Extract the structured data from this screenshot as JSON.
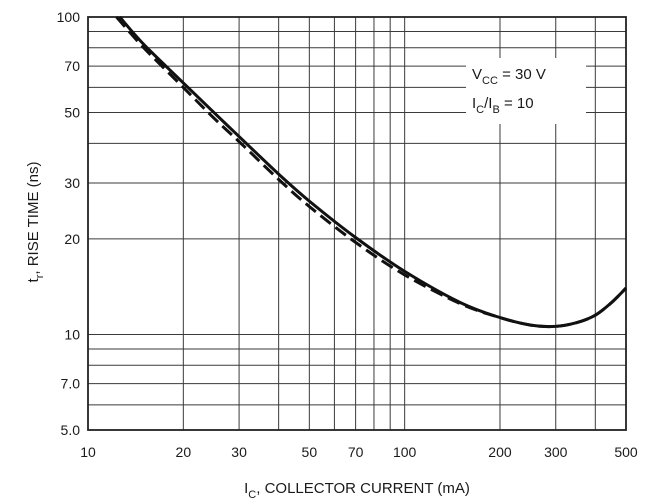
{
  "chart_data": {
    "type": "line",
    "x_scale": "log",
    "y_scale": "log",
    "xlim": [
      10,
      500
    ],
    "ylim": [
      5,
      100
    ],
    "grid": true,
    "x_ticks": [
      "10",
      "20",
      "30",
      "50",
      "70",
      "100",
      "200",
      "300",
      "500"
    ],
    "y_ticks": [
      "100",
      "70",
      "50",
      "30",
      "20",
      "10",
      "7.0",
      "5.0"
    ],
    "ylabel": {
      "main": "t",
      "sub": "r",
      "rest": ", RISE TIME (ns)"
    },
    "xlabel": {
      "main": "I",
      "sub": "C",
      "rest": ", COLLECTOR CURRENT (mA)"
    },
    "annotation": {
      "line1": {
        "main": "V",
        "sub": "CC",
        "rest": " = 30 V"
      },
      "line2": {
        "main": "I",
        "sub": "C",
        "mid": "/I",
        "sub2": "B",
        "rest": " = 10"
      }
    },
    "series": [
      {
        "style": "solid",
        "points": [
          [
            12.6,
            100
          ],
          [
            15,
            82
          ],
          [
            20,
            62
          ],
          [
            25,
            50
          ],
          [
            30,
            42
          ],
          [
            40,
            32
          ],
          [
            50,
            26.3
          ],
          [
            70,
            20.2
          ],
          [
            100,
            15.8
          ],
          [
            150,
            12.6
          ],
          [
            200,
            11.3
          ],
          [
            250,
            10.7
          ],
          [
            300,
            10.6
          ],
          [
            350,
            10.9
          ],
          [
            400,
            11.5
          ],
          [
            450,
            12.6
          ],
          [
            500,
            14
          ]
        ]
      },
      {
        "style": "dashed",
        "points": [
          [
            12.3,
            100
          ],
          [
            15,
            80
          ],
          [
            20,
            60
          ],
          [
            25,
            48
          ],
          [
            30,
            40.5
          ],
          [
            40,
            30.8
          ],
          [
            50,
            25.3
          ],
          [
            70,
            19.5
          ],
          [
            100,
            15.4
          ],
          [
            150,
            12.5
          ],
          [
            200,
            11.3
          ],
          [
            250,
            10.7
          ],
          [
            300,
            10.6
          ],
          [
            350,
            10.9
          ],
          [
            400,
            11.5
          ],
          [
            450,
            12.6
          ],
          [
            500,
            14
          ]
        ]
      }
    ]
  }
}
